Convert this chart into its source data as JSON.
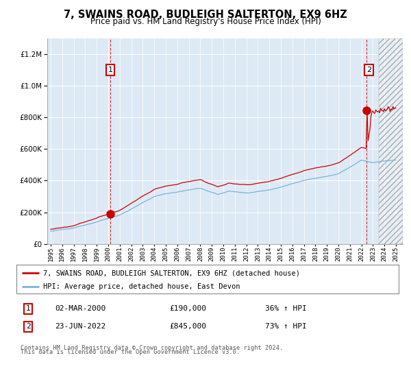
{
  "title": "7, SWAINS ROAD, BUDLEIGH SALTERTON, EX9 6HZ",
  "subtitle": "Price paid vs. HM Land Registry's House Price Index (HPI)",
  "legend_line1": "7, SWAINS ROAD, BUDLEIGH SALTERTON, EX9 6HZ (detached house)",
  "legend_line2": "HPI: Average price, detached house, East Devon",
  "sale1_date": "02-MAR-2000",
  "sale1_price": "£190,000",
  "sale1_hpi": "36% ↑ HPI",
  "sale2_date": "23-JUN-2022",
  "sale2_price": "£845,000",
  "sale2_hpi": "73% ↑ HPI",
  "footer": "Contains HM Land Registry data © Crown copyright and database right 2024.\nThis data is licensed under the Open Government Licence v3.0.",
  "hpi_color": "#7ab3d8",
  "property_color": "#cc0000",
  "background_plot": "#ddeaf5",
  "background_fig": "#ffffff",
  "ylim_max": 1300000,
  "ylim_min": 0,
  "sale1_year": 2000.17,
  "sale1_val": 190000,
  "sale2_year": 2022.47,
  "sale2_val": 845000
}
